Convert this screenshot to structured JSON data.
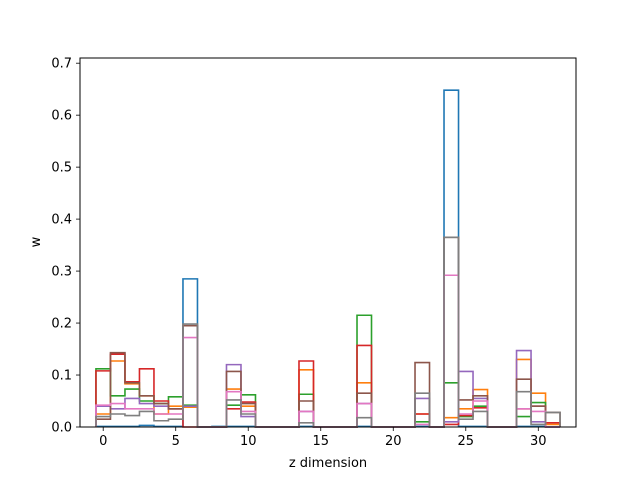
{
  "chart_data": {
    "type": "step-histogram",
    "xlabel": "z dimension",
    "ylabel": "w",
    "xlim": [
      -1.6,
      32.6
    ],
    "ylim": [
      0,
      0.71
    ],
    "xticks": [
      0,
      5,
      10,
      15,
      20,
      25,
      30
    ],
    "yticks": [
      0.0,
      0.1,
      0.2,
      0.3,
      0.4,
      0.5,
      0.6,
      0.7
    ],
    "ytick_labels": [
      "0.0",
      "0.1",
      "0.2",
      "0.3",
      "0.4",
      "0.5",
      "0.6",
      "0.7"
    ],
    "grid": false,
    "bins": 32,
    "series": [
      {
        "color": "#1f77b4",
        "values": [
          0.001,
          0.001,
          0.001,
          0.003,
          0.001,
          0.001,
          0.285,
          0,
          0.001,
          0.001,
          0.001,
          0,
          0,
          0,
          0.001,
          0,
          0,
          0,
          0.001,
          0,
          0,
          0,
          0.001,
          0,
          0.648,
          0.001,
          0.001,
          0,
          0,
          0.001,
          0.001,
          0
        ]
      },
      {
        "color": "#ff7f0e",
        "values": [
          0.025,
          0.127,
          0.083,
          0.06,
          0.025,
          0.04,
          0.038,
          0,
          0,
          0.073,
          0.04,
          0,
          0,
          0,
          0.11,
          0,
          0,
          0,
          0.085,
          0,
          0,
          0,
          0.025,
          0,
          0.018,
          0.035,
          0.072,
          0,
          0,
          0.13,
          0.065,
          0.005
        ]
      },
      {
        "color": "#2ca02c",
        "values": [
          0.112,
          0.06,
          0.073,
          0.05,
          0.045,
          0.058,
          0.042,
          0,
          0,
          0.042,
          0.062,
          0,
          0,
          0,
          0.063,
          0,
          0,
          0,
          0.215,
          0,
          0,
          0,
          0.01,
          0,
          0.085,
          0.02,
          0.04,
          0,
          0,
          0.02,
          0.047,
          0
        ]
      },
      {
        "color": "#d62728",
        "values": [
          0.108,
          0.14,
          0.087,
          0.112,
          0.05,
          0.035,
          0,
          0,
          0,
          0.035,
          0.048,
          0,
          0,
          0,
          0.127,
          0,
          0,
          0,
          0.157,
          0,
          0,
          0,
          0.025,
          0,
          0.005,
          0.022,
          0.037,
          0,
          0,
          0.035,
          0.04,
          0.008
        ]
      },
      {
        "color": "#9467bd",
        "values": [
          0.04,
          0.035,
          0.055,
          0.045,
          0.04,
          0.035,
          0.04,
          0,
          0,
          0.12,
          0.02,
          0,
          0,
          0,
          0.03,
          0,
          0,
          0,
          0.045,
          0,
          0,
          0,
          0.055,
          0,
          0.01,
          0.107,
          0.055,
          0,
          0,
          0.147,
          0.01,
          0
        ]
      },
      {
        "color": "#8c564b",
        "values": [
          0.015,
          0.143,
          0.085,
          0.06,
          0.045,
          0.035,
          0.195,
          0,
          0,
          0.107,
          0.045,
          0,
          0,
          0,
          0.05,
          0,
          0,
          0,
          0.065,
          0,
          0,
          0,
          0.124,
          0,
          0.365,
          0.052,
          0.06,
          0,
          0,
          0.092,
          0.04,
          0.028
        ]
      },
      {
        "color": "#e377c2",
        "values": [
          0.042,
          0.045,
          0.035,
          0.035,
          0.025,
          0.025,
          0.172,
          0,
          0,
          0.068,
          0.03,
          0,
          0,
          0,
          0.03,
          0,
          0,
          0,
          0.045,
          0,
          0,
          0,
          0.005,
          0,
          0.292,
          0.025,
          0.05,
          0,
          0,
          0.035,
          0.03,
          0
        ]
      },
      {
        "color": "#7f7f7f",
        "values": [
          0.02,
          0.025,
          0.022,
          0.03,
          0.012,
          0.015,
          0.198,
          0,
          0,
          0.052,
          0.025,
          0,
          0,
          0,
          0.008,
          0,
          0,
          0,
          0.018,
          0,
          0,
          0,
          0.065,
          0,
          0.365,
          0.015,
          0.03,
          0,
          0,
          0.068,
          0.005,
          0.028
        ]
      }
    ]
  }
}
